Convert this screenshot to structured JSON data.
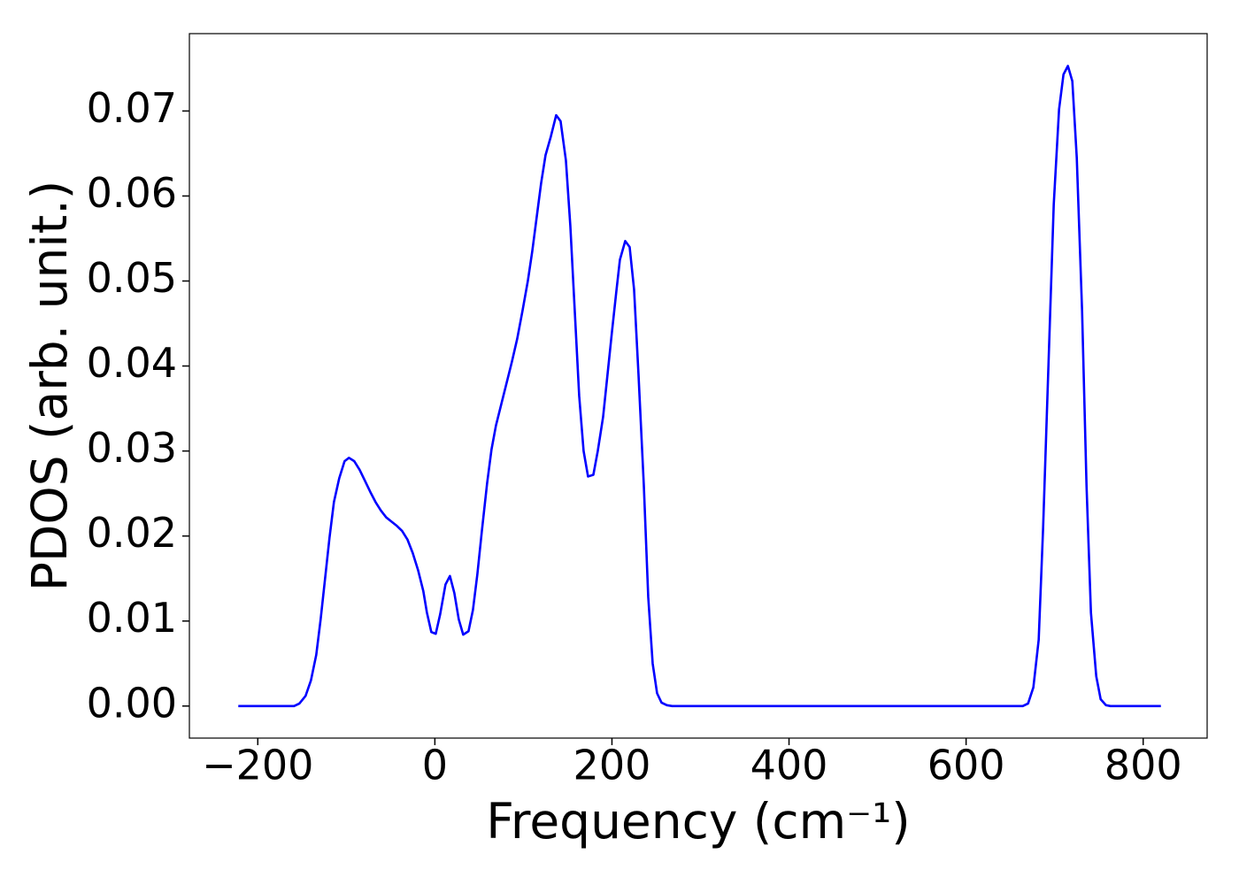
{
  "chart_data": {
    "type": "line",
    "xlabel": "Frequency (cm⁻¹)",
    "ylabel": "PDOS (arb. unit.)",
    "color": "#0000ff",
    "x": [
      -222,
      -159,
      -153,
      -146,
      -140,
      -134,
      -129,
      -124,
      -119,
      -114,
      -108,
      -102,
      -97,
      -91,
      -85,
      -79,
      -73,
      -67,
      -61,
      -55,
      -49,
      -43,
      -37,
      -31,
      -25,
      -19,
      -13,
      -9,
      -4,
      1,
      6,
      12,
      17,
      22,
      27,
      32,
      38,
      43,
      48,
      53,
      59,
      64,
      69,
      75,
      81,
      87,
      93,
      99,
      105,
      110,
      115,
      120,
      125,
      131,
      137,
      142,
      148,
      153,
      158,
      163,
      168,
      173,
      179,
      184,
      190,
      195,
      200,
      205,
      209,
      215,
      220,
      225,
      230,
      236,
      241,
      246,
      251,
      256,
      262,
      268,
      664,
      670,
      676,
      682,
      687,
      693,
      699,
      705,
      710,
      715,
      720,
      725,
      731,
      736,
      741,
      747,
      752,
      758,
      763,
      820
    ],
    "values": [
      0,
      0,
      0.0003,
      0.0012,
      0.003,
      0.006,
      0.0102,
      0.015,
      0.0198,
      0.024,
      0.0268,
      0.0288,
      0.0292,
      0.0288,
      0.0278,
      0.0265,
      0.0252,
      0.024,
      0.023,
      0.0222,
      0.0217,
      0.0212,
      0.0206,
      0.0196,
      0.018,
      0.016,
      0.0135,
      0.011,
      0.0087,
      0.0085,
      0.0108,
      0.0143,
      0.0153,
      0.0133,
      0.0102,
      0.0084,
      0.0088,
      0.0113,
      0.0155,
      0.0205,
      0.0262,
      0.0302,
      0.033,
      0.0355,
      0.038,
      0.0405,
      0.0432,
      0.0465,
      0.05,
      0.0535,
      0.0575,
      0.0615,
      0.0648,
      0.067,
      0.0695,
      0.0688,
      0.0642,
      0.0565,
      0.0465,
      0.0365,
      0.03,
      0.027,
      0.0272,
      0.03,
      0.034,
      0.039,
      0.044,
      0.0488,
      0.0525,
      0.0547,
      0.054,
      0.049,
      0.039,
      0.026,
      0.0128,
      0.005,
      0.0015,
      0.0004,
      0.0001,
      0,
      0,
      0.0003,
      0.0022,
      0.0078,
      0.021,
      0.04,
      0.059,
      0.0702,
      0.0743,
      0.0753,
      0.0735,
      0.0645,
      0.0465,
      0.026,
      0.011,
      0.0035,
      0.0008,
      0.0001,
      0,
      0
    ],
    "xlim": [
      -277.25,
      872.25
    ],
    "xticks": [
      {
        "value": -200,
        "label": "−200"
      },
      0,
      200,
      400,
      600,
      800
    ],
    "ylim": [
      -0.00377,
      0.0791
    ],
    "yticks": [
      {
        "value": 0,
        "label": "0.00"
      },
      0.01,
      0.02,
      0.03,
      0.04,
      0.05,
      0.06,
      0.07
    ]
  }
}
